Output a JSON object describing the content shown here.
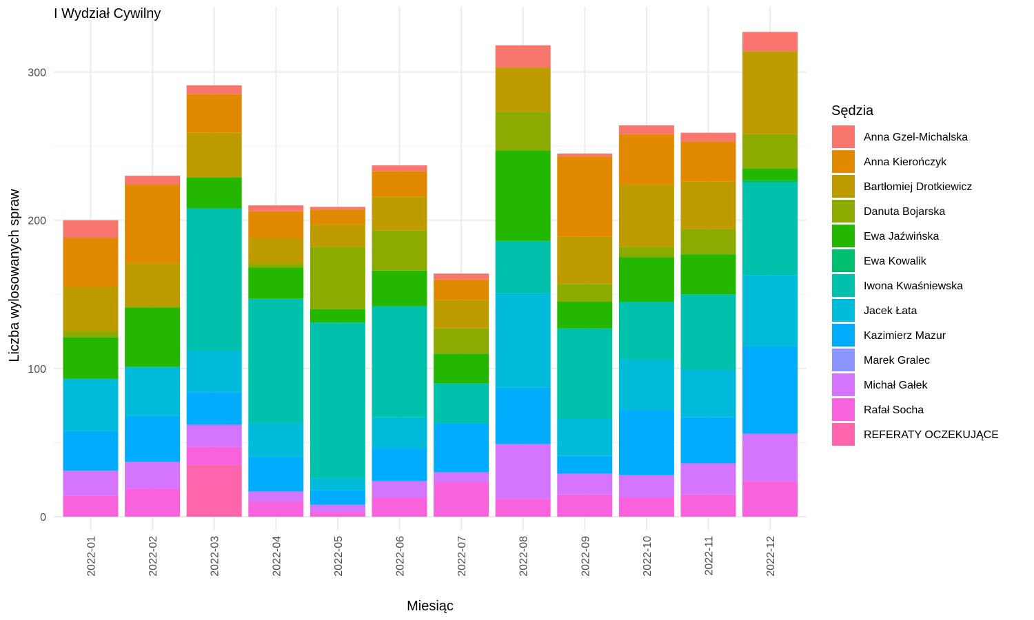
{
  "chart_data": {
    "type": "bar",
    "stacked": true,
    "title": "I Wydział Cywilny",
    "xlabel": "Miesiąc",
    "ylabel": "Liczba wylosowanych spraw",
    "ylim": [
      0,
      330
    ],
    "yticks": [
      0,
      100,
      200,
      300
    ],
    "grid": true,
    "legend_title": "Sędzia",
    "legend_position": "right",
    "categories": [
      "2022-01",
      "2022-02",
      "2022-03",
      "2022-04",
      "2022-05",
      "2022-06",
      "2022-07",
      "2022-08",
      "2022-09",
      "2022-10",
      "2022-11",
      "2022-12"
    ],
    "series": [
      {
        "name": "Anna Gzel-Michalska",
        "color": "#F8766D",
        "values": [
          12,
          6,
          6,
          4,
          2,
          4,
          4,
          15,
          2,
          6,
          6,
          13
        ]
      },
      {
        "name": "Anna Kierończyk",
        "color": "#E18A00",
        "values": [
          33,
          53,
          26,
          18,
          10,
          17,
          14,
          0,
          54,
          34,
          27,
          0
        ]
      },
      {
        "name": "Bartłomiej Drotkiewicz",
        "color": "#BE9C00",
        "values": [
          30,
          29,
          30,
          17,
          15,
          23,
          19,
          30,
          32,
          42,
          32,
          56
        ]
      },
      {
        "name": "Danuta Bojarska",
        "color": "#8CAB00",
        "values": [
          4,
          1,
          0,
          3,
          42,
          27,
          17,
          26,
          12,
          7,
          17,
          23
        ]
      },
      {
        "name": "Ewa Jaźwińska",
        "color": "#24B700",
        "values": [
          28,
          40,
          21,
          21,
          9,
          24,
          20,
          61,
          18,
          30,
          27,
          8
        ]
      },
      {
        "name": "Ewa Kowalik",
        "color": "#00BE70",
        "values": [
          0,
          0,
          0,
          0,
          0,
          0,
          0,
          0,
          0,
          0,
          0,
          2
        ]
      },
      {
        "name": "Iwona Kwaśniewska",
        "color": "#00C1AB",
        "values": [
          0,
          0,
          96,
          84,
          105,
          75,
          27,
          35,
          61,
          39,
          51,
          62
        ]
      },
      {
        "name": "Jacek Łata",
        "color": "#00BBDA",
        "values": [
          35,
          33,
          28,
          23,
          8,
          21,
          0,
          64,
          25,
          34,
          32,
          48
        ]
      },
      {
        "name": "Kazimierz Mazur",
        "color": "#00ACFC",
        "values": [
          27,
          31,
          22,
          23,
          10,
          22,
          33,
          38,
          12,
          44,
          31,
          59
        ]
      },
      {
        "name": "Marek Gralec",
        "color": "#8B93FF",
        "values": [
          0,
          0,
          0,
          0,
          0,
          0,
          0,
          0,
          0,
          0,
          0,
          0
        ]
      },
      {
        "name": "Michał Gałek",
        "color": "#D575FE",
        "values": [
          17,
          18,
          15,
          7,
          5,
          11,
          7,
          37,
          14,
          15,
          21,
          32
        ]
      },
      {
        "name": "Rafał Socha",
        "color": "#F962DD",
        "values": [
          14,
          19,
          12,
          10,
          3,
          13,
          23,
          12,
          15,
          13,
          15,
          24
        ]
      },
      {
        "name": "REFERATY OCZEKUJĄCE",
        "color": "#FF65AC",
        "values": [
          0,
          0,
          35,
          0,
          0,
          0,
          0,
          0,
          0,
          0,
          0,
          0
        ]
      }
    ]
  }
}
